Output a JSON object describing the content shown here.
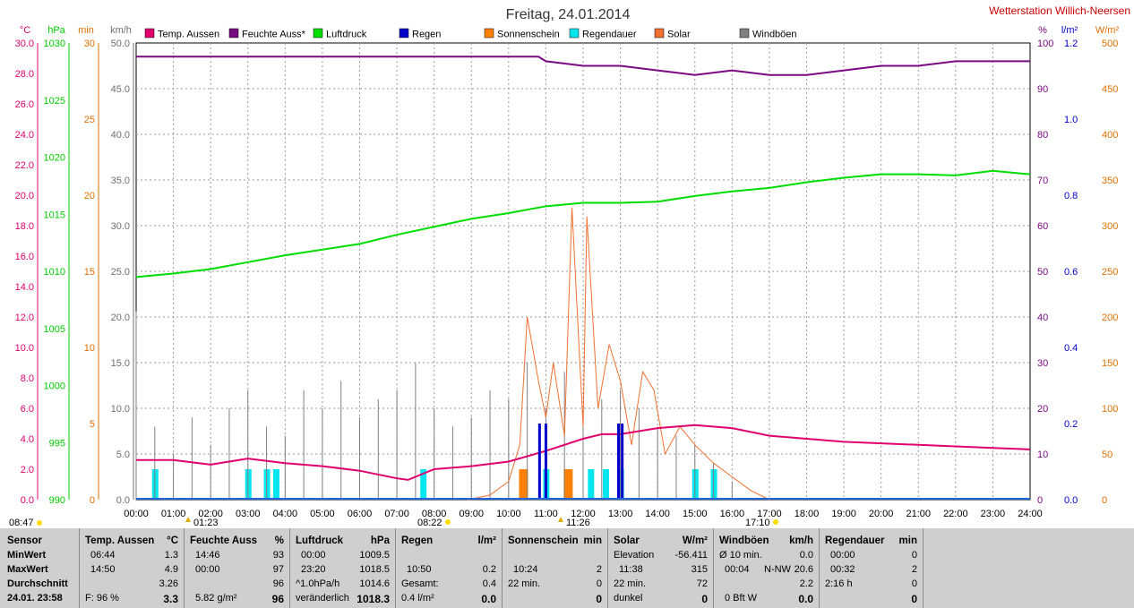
{
  "title": "Freitag, 24.01.2014",
  "station": "Wetterstation Willich-Neersen",
  "legend": [
    {
      "label": "Temp. Aussen",
      "color": "#e0006e"
    },
    {
      "label": "Feuchte Auss*",
      "color": "#7a0a82"
    },
    {
      "label": "Luftdruck",
      "color": "#00dd00"
    },
    {
      "label": "Regen",
      "color": "#0000cc"
    },
    {
      "label": "Sonnenschein",
      "color": "#ff8000"
    },
    {
      "label": "Regendauer",
      "color": "#00e5ee"
    },
    {
      "label": "Solar",
      "color": "#f07030"
    },
    {
      "label": "Windböen",
      "color": "#808080"
    }
  ],
  "axes_left": [
    {
      "unit": "°C",
      "color": "#e0006e",
      "ticks": [
        "30.0",
        "28.0",
        "26.0",
        "24.0",
        "22.0",
        "20.0",
        "18.0",
        "16.0",
        "14.0",
        "12.0",
        "10.0",
        "8.0",
        "6.0",
        "4.0",
        "2.0",
        "0.0"
      ]
    },
    {
      "unit": "hPa",
      "color": "#00cc00",
      "ticks": [
        "1030",
        "1025",
        "1020",
        "1015",
        "1010",
        "1005",
        "1000",
        "995",
        "990"
      ]
    },
    {
      "unit": "min",
      "color": "#e07000",
      "ticks": [
        "30",
        "25",
        "20",
        "15",
        "10",
        "5",
        "0"
      ]
    },
    {
      "unit": "km/h",
      "color": "#707070",
      "ticks": [
        "50.0",
        "45.0",
        "40.0",
        "35.0",
        "30.0",
        "25.0",
        "20.0",
        "15.0",
        "10.0",
        "5.0",
        "0.0"
      ]
    }
  ],
  "axes_right": [
    {
      "unit": "%",
      "color": "#7a0a82",
      "ticks": [
        "100",
        "90",
        "80",
        "70",
        "60",
        "50",
        "40",
        "30",
        "20",
        "10",
        "0"
      ]
    },
    {
      "unit": "l/m²",
      "color": "#0000cc",
      "ticks": [
        "1.2",
        "1.0",
        "0.8",
        "0.6",
        "0.4",
        "0.2",
        "0.0"
      ]
    },
    {
      "unit": "W/m²",
      "color": "#e07000",
      "ticks": [
        "500",
        "450",
        "400",
        "350",
        "300",
        "250",
        "200",
        "150",
        "100",
        "50",
        "0"
      ]
    }
  ],
  "x_ticks": [
    "00:00",
    "01:00",
    "02:00",
    "03:00",
    "04:00",
    "05:00",
    "06:00",
    "07:00",
    "08:00",
    "09:00",
    "10:00",
    "11:00",
    "12:00",
    "13:00",
    "14:00",
    "15:00",
    "16:00",
    "17:00",
    "18:00",
    "19:00",
    "20:00",
    "21:00",
    "22:00",
    "23:00",
    "24:00"
  ],
  "time_markers": {
    "sunrise_left": "08:47",
    "moonrise": "01:23",
    "sunrise": "08:22",
    "noon": "11:26",
    "sunset": "17:10"
  },
  "chart_data": {
    "type": "line",
    "title": "Freitag, 24.01.2014",
    "x_unit": "hours",
    "xlim": [
      0,
      24
    ],
    "series": [
      {
        "name": "Temp. Aussen",
        "unit": "°C",
        "ylim": [
          0,
          30
        ],
        "x": [
          0,
          1,
          2,
          3,
          4,
          5,
          6,
          7,
          7.3,
          8,
          9,
          10,
          11,
          12,
          12.5,
          13,
          14,
          15,
          16,
          17,
          18,
          19,
          20,
          21,
          22,
          23,
          24
        ],
        "values": [
          2.6,
          2.6,
          2.3,
          2.7,
          2.4,
          2.2,
          1.9,
          1.4,
          1.3,
          2.0,
          2.2,
          2.5,
          3.2,
          4.0,
          4.3,
          4.3,
          4.7,
          4.9,
          4.7,
          4.2,
          4.0,
          3.8,
          3.7,
          3.6,
          3.5,
          3.4,
          3.3
        ]
      },
      {
        "name": "Feuchte Auss*",
        "unit": "%",
        "ylim": [
          0,
          100
        ],
        "x": [
          0,
          1,
          2,
          3,
          4,
          5,
          6,
          7,
          8,
          9,
          10,
          10.8,
          11,
          12,
          13,
          14,
          15,
          16,
          17,
          18,
          19,
          20,
          21,
          22,
          23,
          24
        ],
        "values": [
          97,
          97,
          97,
          97,
          97,
          97,
          97,
          97,
          97,
          97,
          97,
          97,
          96,
          95,
          95,
          94,
          93,
          94,
          93,
          93,
          94,
          95,
          95,
          96,
          96,
          96
        ]
      },
      {
        "name": "Luftdruck",
        "unit": "hPa",
        "ylim": [
          990,
          1030
        ],
        "x": [
          0,
          1,
          2,
          3,
          4,
          5,
          6,
          7,
          8,
          9,
          10,
          11,
          12,
          13,
          14,
          15,
          16,
          17,
          18,
          19,
          20,
          21,
          22,
          23,
          24
        ],
        "values": [
          1009.5,
          1009.8,
          1010.2,
          1010.8,
          1011.4,
          1011.9,
          1012.4,
          1013.2,
          1013.9,
          1014.6,
          1015.1,
          1015.7,
          1016.0,
          1016.0,
          1016.1,
          1016.6,
          1017.0,
          1017.3,
          1017.8,
          1018.2,
          1018.5,
          1018.5,
          1018.4,
          1018.8,
          1018.5
        ]
      },
      {
        "name": "Regen",
        "unit": "l/m²",
        "ylim": [
          0,
          1.2
        ],
        "x": [
          10.83,
          11.0,
          12.95,
          13.05
        ],
        "values": [
          0.2,
          0.2,
          0.2,
          0.2
        ]
      },
      {
        "name": "Sonnenschein",
        "unit": "min",
        "ylim": [
          0,
          30
        ],
        "x": [
          10.4,
          11.6
        ],
        "values": [
          2,
          2
        ]
      },
      {
        "name": "Regendauer",
        "unit": "min",
        "ylim": [
          0,
          30
        ],
        "x": [
          0.5,
          3.0,
          3.5,
          3.75,
          7.7,
          10.4,
          11.0,
          12.2,
          12.6,
          13.0,
          15.0,
          15.5
        ],
        "values": [
          2,
          2,
          2,
          2,
          2,
          2,
          2,
          2,
          2,
          2,
          2,
          2
        ]
      },
      {
        "name": "Solar",
        "unit": "W/m²",
        "ylim": [
          0,
          500
        ],
        "x": [
          8.9,
          9.5,
          10,
          10.3,
          10.5,
          10.8,
          11.0,
          11.2,
          11.5,
          11.7,
          12.0,
          12.1,
          12.4,
          12.7,
          13,
          13.3,
          13.6,
          13.9,
          14.2,
          14.6,
          15.0,
          15.5,
          16,
          16.5,
          17.0
        ],
        "values": [
          0,
          5,
          20,
          60,
          200,
          130,
          90,
          150,
          70,
          320,
          80,
          310,
          100,
          170,
          130,
          60,
          140,
          120,
          50,
          80,
          60,
          40,
          25,
          10,
          0
        ]
      },
      {
        "name": "Windböen",
        "unit": "km/h",
        "ylim": [
          0,
          50
        ],
        "x": [
          0,
          0.5,
          1,
          1.5,
          2,
          2.5,
          3,
          3.5,
          4,
          4.5,
          5,
          5.5,
          6,
          6.5,
          7,
          7.5,
          8,
          8.5,
          9,
          9.5,
          10,
          10.5,
          11,
          11.5,
          12,
          12.5,
          13,
          13.5,
          14,
          14.5,
          15,
          15.5,
          16
        ],
        "values": [
          20.6,
          8,
          5,
          9,
          6,
          10,
          12,
          8,
          7,
          12,
          10,
          13,
          9,
          11,
          12,
          15,
          10,
          8,
          9,
          12,
          11,
          15,
          10,
          14,
          9,
          11,
          12,
          10,
          8,
          7,
          6,
          4,
          2
        ]
      }
    ]
  },
  "stats": {
    "sensor": {
      "header": "Sensor",
      "rows": [
        "MinWert",
        "MaxWert",
        "Durchschnitt",
        "24.01. 23:58"
      ]
    },
    "temp": {
      "header": "Temp. Aussen",
      "unit": "°C",
      "min_t": "06:44",
      "min_v": "1.3",
      "max_t": "14:50",
      "max_v": "4.9",
      "avg": "3.26",
      "foot_l": "F: 96 %",
      "foot_v": "3.3"
    },
    "feuchte": {
      "header": "Feuchte Auss",
      "unit": "%",
      "min_t": "14:46",
      "min_v": "93",
      "max_t": "00:00",
      "max_v": "97",
      "avg": "96",
      "foot_l": "5.82 g/m²",
      "foot_v": "96"
    },
    "luft": {
      "header": "Luftdruck",
      "unit": "hPa",
      "min_t": "00:00",
      "min_v": "1009.5",
      "max_t": "23:20",
      "max_v": "1018.5",
      "avg_l": "^1.0hPa/h",
      "avg": "1014.6",
      "foot_l": "veränderlich",
      "foot_v": "1018.3"
    },
    "regen": {
      "header": "Regen",
      "unit": "l/m²",
      "max_t": "10:50",
      "max_v": "0.2",
      "avg_l": "Gesamt:",
      "avg": "0.4",
      "foot_l": "0.4 l/m²",
      "foot_v": "0.0"
    },
    "sonne": {
      "header": "Sonnenschein",
      "unit": "min",
      "max_t": "10:24",
      "max_v": "2",
      "avg_l": "22 min.",
      "avg": "0",
      "foot_v": "0"
    },
    "solar": {
      "header": "Solar",
      "unit": "W/m²",
      "min_l": "Elevation",
      "min_v": "-56.411",
      "max_t": "11:38",
      "max_v": "315",
      "avg_l": "22 min.",
      "avg": "72",
      "foot_l": "dunkel",
      "foot_v": "0"
    },
    "wind": {
      "header": "Windböen",
      "unit": "km/h",
      "min_l": "Ø 10 min.",
      "min_v": "0.0",
      "max_t": "00:04",
      "max_dir": "N-NW",
      "max_v": "20.6",
      "avg": "2.2",
      "foot_l": "0 Bft W",
      "foot_v": "0.0"
    },
    "regendauer": {
      "header": "Regendauer",
      "unit": "min",
      "min_t": "00:00",
      "min_v": "0",
      "max_t": "00:32",
      "max_v": "2",
      "avg_l": "2:16 h",
      "avg": "0",
      "foot_v": "0"
    }
  }
}
